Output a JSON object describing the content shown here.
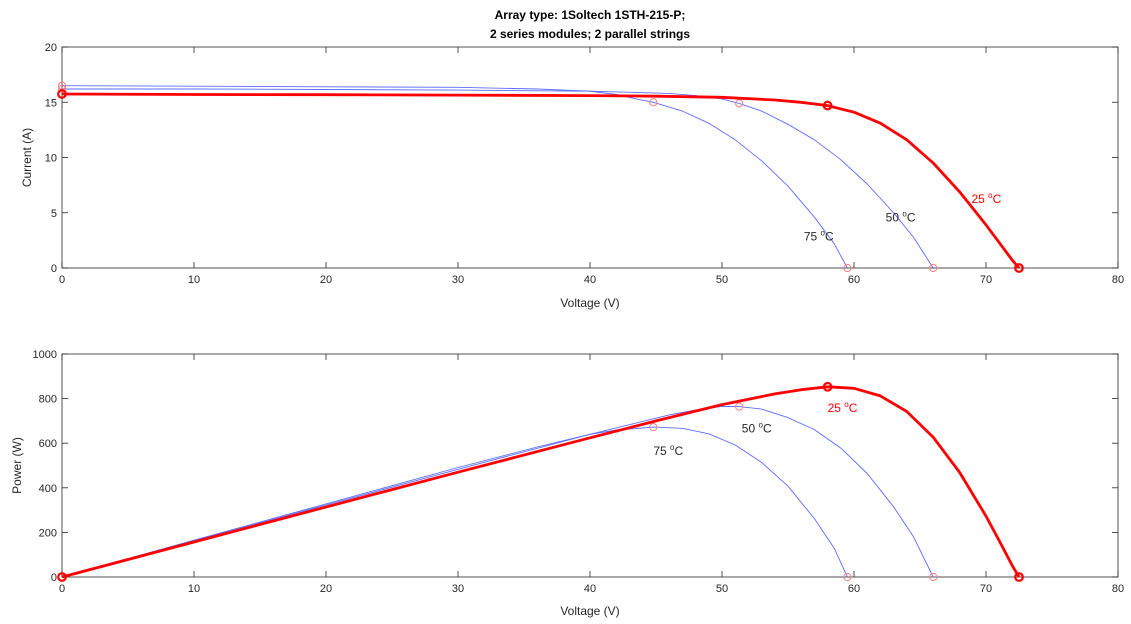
{
  "title_lines": [
    "Array type: 1Soltech 1STH-215-P;",
    "2 series modules; 2 parallel strings"
  ],
  "colors": {
    "highlight": "#ff0000",
    "other": "#5a6cff",
    "marker_other": "#ff7a7a",
    "axis": "#262626"
  },
  "chart_data": [
    {
      "type": "line",
      "xlabel": "Voltage (V)",
      "ylabel": "Current (A)",
      "xlim": [
        0,
        80
      ],
      "ylim": [
        0,
        20
      ],
      "xticks": [
        "0",
        "10",
        "20",
        "30",
        "40",
        "50",
        "60",
        "70",
        "80"
      ],
      "yticks": [
        "0",
        "5",
        "10",
        "15",
        "20"
      ],
      "grid": false,
      "series": [
        {
          "name": "25 °C",
          "color": "#ff0000",
          "x": [
            0,
            10,
            20,
            30,
            40,
            45,
            50,
            54,
            56,
            58,
            60,
            62,
            64,
            66,
            68,
            70,
            71,
            72,
            72.5
          ],
          "y": [
            15.75,
            15.7,
            15.68,
            15.65,
            15.6,
            15.55,
            15.45,
            15.2,
            15.0,
            14.7,
            14.1,
            13.1,
            11.6,
            9.5,
            6.9,
            3.9,
            2.3,
            0.7,
            0
          ],
          "markers": [
            {
              "x": 0,
              "y": 15.75
            },
            {
              "x": 58,
              "y": 14.7
            },
            {
              "x": 72.5,
              "y": 0
            }
          ]
        },
        {
          "name": "50 °C",
          "color": "#5a6cff",
          "x": [
            0,
            10,
            20,
            30,
            40,
            46,
            48,
            50,
            51.3,
            53,
            55,
            57,
            59,
            61,
            63,
            64.5,
            66
          ],
          "y": [
            16.2,
            16.2,
            16.15,
            16.1,
            16.0,
            15.8,
            15.6,
            15.3,
            14.9,
            14.2,
            13.0,
            11.6,
            9.8,
            7.6,
            5.0,
            2.8,
            0
          ],
          "markers": [
            {
              "x": 0,
              "y": 16.2
            },
            {
              "x": 51.3,
              "y": 14.9
            },
            {
              "x": 66,
              "y": 0
            }
          ]
        },
        {
          "name": "75 °C",
          "color": "#5a6cff",
          "x": [
            0,
            10,
            20,
            30,
            36,
            40,
            42,
            43.5,
            44.8,
            47,
            49,
            51,
            53,
            55,
            57,
            58.5,
            59.5
          ],
          "y": [
            16.5,
            16.45,
            16.4,
            16.35,
            16.2,
            16.0,
            15.7,
            15.3,
            15.0,
            14.2,
            13.1,
            11.6,
            9.7,
            7.4,
            4.6,
            2.2,
            0
          ],
          "markers": [
            {
              "x": 0,
              "y": 16.5
            },
            {
              "x": 44.8,
              "y": 15.0
            },
            {
              "x": 59.5,
              "y": 0
            }
          ]
        }
      ],
      "annotations": [
        {
          "base": "25 ",
          "sup": "o",
          "rest": "C",
          "x": 68.9,
          "y": 5.9,
          "color": "#ff0000"
        },
        {
          "base": "50 ",
          "sup": "o",
          "rest": "C",
          "x": 62.4,
          "y": 4.2,
          "color": "#262626"
        },
        {
          "base": "75 ",
          "sup": "o",
          "rest": "C",
          "x": 56.2,
          "y": 2.5,
          "color": "#262626"
        }
      ]
    },
    {
      "type": "line",
      "xlabel": "Voltage (V)",
      "ylabel": "Power (W)",
      "xlim": [
        0,
        80
      ],
      "ylim": [
        0,
        1000
      ],
      "xticks": [
        "0",
        "10",
        "20",
        "30",
        "40",
        "50",
        "60",
        "70",
        "80"
      ],
      "yticks": [
        "0",
        "200",
        "400",
        "600",
        "800",
        "1000"
      ],
      "grid": false,
      "series": [
        {
          "name": "25 °C",
          "color": "#ff0000",
          "x": [
            0,
            10,
            20,
            30,
            40,
            45,
            50,
            54,
            56,
            58,
            60,
            62,
            64,
            66,
            68,
            70,
            71,
            72,
            72.5
          ],
          "y": [
            0,
            157,
            314,
            470,
            624,
            700,
            773,
            821,
            840,
            853,
            846,
            812,
            742,
            627,
            469,
            273,
            163,
            50,
            0
          ],
          "markers": [
            {
              "x": 0,
              "y": 0
            },
            {
              "x": 58,
              "y": 853
            },
            {
              "x": 72.5,
              "y": 0
            }
          ]
        },
        {
          "name": "50 °C",
          "color": "#5a6cff",
          "x": [
            0,
            10,
            20,
            30,
            40,
            46,
            48,
            50,
            51.3,
            53,
            55,
            57,
            59,
            61,
            63,
            64.5,
            66
          ],
          "y": [
            0,
            162,
            323,
            483,
            640,
            727,
            749,
            765,
            764,
            753,
            715,
            661,
            578,
            464,
            315,
            181,
            0
          ],
          "markers": [
            {
              "x": 51.3,
              "y": 764
            },
            {
              "x": 66,
              "y": 0
            }
          ]
        },
        {
          "name": "75 °C",
          "color": "#5a6cff",
          "x": [
            0,
            10,
            20,
            30,
            36,
            40,
            42,
            43.5,
            44.8,
            47,
            49,
            51,
            53,
            55,
            57,
            58.5,
            59.5
          ],
          "y": [
            0,
            165,
            328,
            491,
            583,
            640,
            659,
            666,
            672,
            667,
            642,
            592,
            514,
            407,
            262,
            129,
            0
          ],
          "markers": [
            {
              "x": 44.8,
              "y": 672
            },
            {
              "x": 59.5,
              "y": 0
            }
          ]
        }
      ],
      "annotations": [
        {
          "base": "25 ",
          "sup": "o",
          "rest": "C",
          "x": 58.0,
          "y": 740,
          "color": "#ff0000"
        },
        {
          "base": "50 ",
          "sup": "o",
          "rest": "C",
          "x": 51.5,
          "y": 648,
          "color": "#262626"
        },
        {
          "base": "75 ",
          "sup": "o",
          "rest": "C",
          "x": 44.8,
          "y": 548,
          "color": "#262626"
        }
      ]
    }
  ]
}
